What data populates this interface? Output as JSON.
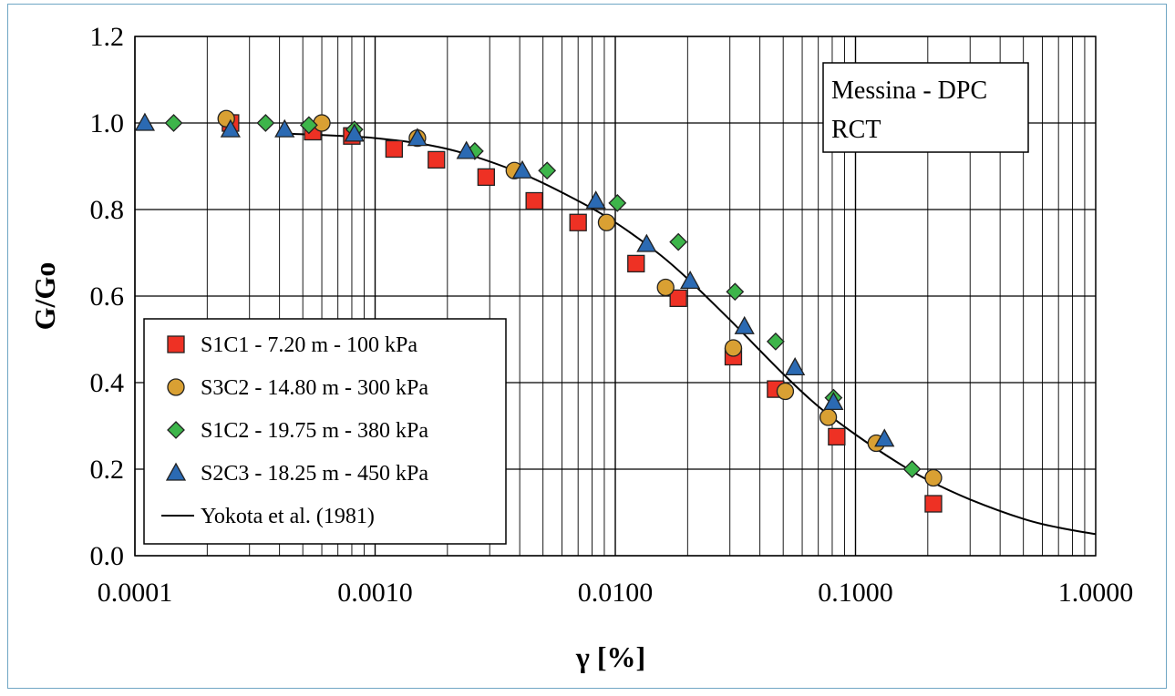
{
  "chart_data": {
    "type": "scatter",
    "xlabel": "γ [%]",
    "ylabel": "G/Go",
    "x_scale": "log",
    "xlim": [
      0.0001,
      1.0
    ],
    "ylim": [
      0.0,
      1.2
    ],
    "x_ticks": [
      {
        "value": 0.0001,
        "label": "0.0001"
      },
      {
        "value": 0.001,
        "label": "0.0010"
      },
      {
        "value": 0.01,
        "label": "0.0100"
      },
      {
        "value": 0.1,
        "label": "0.1000"
      },
      {
        "value": 1.0,
        "label": "1.0000"
      }
    ],
    "y_ticks": [
      {
        "value": 0.0,
        "label": "0.0"
      },
      {
        "value": 0.2,
        "label": "0.2"
      },
      {
        "value": 0.4,
        "label": "0.4"
      },
      {
        "value": 0.6,
        "label": "0.6"
      },
      {
        "value": 0.8,
        "label": "0.8"
      },
      {
        "value": 1.0,
        "label": "1.0"
      },
      {
        "value": 1.2,
        "label": "1.2"
      }
    ],
    "grid": true,
    "legend_position": "bottom-left",
    "annotation": {
      "lines": [
        "Messina - DPC",
        "RCT"
      ]
    },
    "series": [
      {
        "name": "S1C1 - 7.20 m - 100 kPa",
        "marker": "square",
        "color": "#ee3124",
        "points": [
          [
            0.00025,
            1.0
          ],
          [
            0.00055,
            0.98
          ],
          [
            0.0008,
            0.97
          ],
          [
            0.0012,
            0.94
          ],
          [
            0.0018,
            0.915
          ],
          [
            0.0029,
            0.875
          ],
          [
            0.0046,
            0.82
          ],
          [
            0.007,
            0.77
          ],
          [
            0.0122,
            0.675
          ],
          [
            0.0183,
            0.595
          ],
          [
            0.031,
            0.46
          ],
          [
            0.0465,
            0.385
          ],
          [
            0.0835,
            0.275
          ],
          [
            0.211,
            0.12
          ]
        ]
      },
      {
        "name": "S3C2 - 14.80 m - 300 kPa",
        "marker": "circle",
        "color": "#d9a033",
        "points": [
          [
            0.00024,
            1.01
          ],
          [
            0.0006,
            1.0
          ],
          [
            0.0015,
            0.965
          ],
          [
            0.0038,
            0.89
          ],
          [
            0.0092,
            0.77
          ],
          [
            0.0162,
            0.62
          ],
          [
            0.031,
            0.48
          ],
          [
            0.051,
            0.38
          ],
          [
            0.077,
            0.32
          ],
          [
            0.122,
            0.26
          ],
          [
            0.211,
            0.18
          ]
        ]
      },
      {
        "name": "S1C2 - 19.75 m - 380 kPa",
        "marker": "diamond",
        "color": "#3db54a",
        "points": [
          [
            0.000145,
            1.0
          ],
          [
            0.00035,
            1.0
          ],
          [
            0.00053,
            0.995
          ],
          [
            0.00082,
            0.985
          ],
          [
            0.0026,
            0.935
          ],
          [
            0.0052,
            0.89
          ],
          [
            0.0102,
            0.815
          ],
          [
            0.0183,
            0.725
          ],
          [
            0.0315,
            0.61
          ],
          [
            0.0465,
            0.495
          ],
          [
            0.081,
            0.365
          ],
          [
            0.172,
            0.2
          ]
        ]
      },
      {
        "name": "S2C3 - 18.25 m - 450 kPa",
        "marker": "triangle",
        "color": "#2b6ab3",
        "points": [
          [
            0.00011,
            1.0
          ],
          [
            0.00025,
            0.985
          ],
          [
            0.00042,
            0.985
          ],
          [
            0.00082,
            0.975
          ],
          [
            0.0015,
            0.965
          ],
          [
            0.0024,
            0.935
          ],
          [
            0.0041,
            0.89
          ],
          [
            0.0083,
            0.82
          ],
          [
            0.0135,
            0.72
          ],
          [
            0.0205,
            0.635
          ],
          [
            0.0345,
            0.53
          ],
          [
            0.056,
            0.435
          ],
          [
            0.081,
            0.355
          ],
          [
            0.132,
            0.27
          ]
        ]
      }
    ],
    "curve": {
      "name": "Yokota et al. (1981)",
      "color": "#000000",
      "points": [
        [
          0.00045,
          0.975
        ],
        [
          0.001,
          0.965
        ],
        [
          0.002,
          0.94
        ],
        [
          0.004,
          0.885
        ],
        [
          0.007,
          0.82
        ],
        [
          0.01,
          0.77
        ],
        [
          0.015,
          0.7
        ],
        [
          0.02,
          0.64
        ],
        [
          0.03,
          0.545
        ],
        [
          0.05,
          0.42
        ],
        [
          0.07,
          0.345
        ],
        [
          0.1,
          0.28
        ],
        [
          0.15,
          0.215
        ],
        [
          0.2,
          0.175
        ],
        [
          0.3,
          0.13
        ],
        [
          0.5,
          0.085
        ],
        [
          0.7,
          0.065
        ],
        [
          1.0,
          0.05
        ]
      ]
    }
  }
}
